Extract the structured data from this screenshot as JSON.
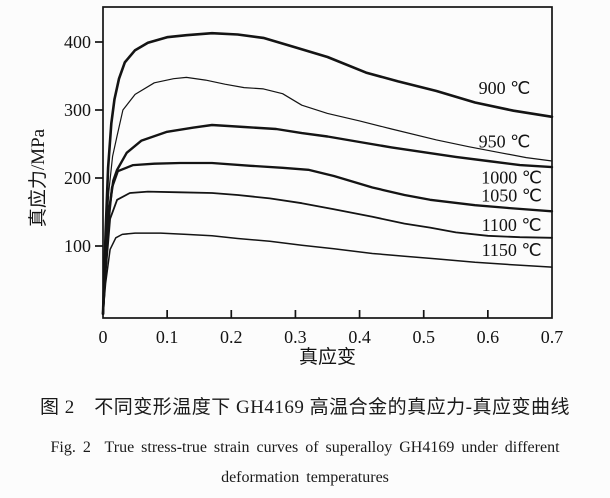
{
  "figure": {
    "caption_zh": "图 2　不同变形温度下 GH4169 高温合金的真应力-真应变曲线",
    "caption_en_line1": "Fig. 2  True stress-true strain curves of superalloy GH4169 under different",
    "caption_en_line2": "deformation temperatures"
  },
  "chart_data": {
    "type": "line",
    "title": "",
    "xlabel": "真应变",
    "ylabel": "真应力/MPa",
    "xlim": [
      0,
      0.7
    ],
    "ylim": [
      0,
      450
    ],
    "grid": false,
    "ink_color": "#141414",
    "legend_position": "inline-right-labels",
    "x_ticks": [
      {
        "value": 0,
        "label": "0"
      },
      {
        "value": 0.1,
        "label": "0.1"
      },
      {
        "value": 0.2,
        "label": "0.2"
      },
      {
        "value": 0.3,
        "label": "0.3"
      },
      {
        "value": 0.4,
        "label": "0.4"
      },
      {
        "value": 0.5,
        "label": "0.5"
      },
      {
        "value": 0.6,
        "label": "0.6"
      },
      {
        "value": 0.7,
        "label": "0.7"
      }
    ],
    "y_ticks": [
      {
        "value": 100,
        "label": "100"
      },
      {
        "value": 200,
        "label": "200"
      },
      {
        "value": 300,
        "label": "300"
      },
      {
        "value": 400,
        "label": "400"
      }
    ],
    "series": [
      {
        "id": "900c",
        "name": "900 ℃",
        "temperature_c": 900,
        "peak_stress_mpa": 413,
        "stroke_width": 2.6,
        "points": [
          [
            0,
            0
          ],
          [
            0.004,
            120
          ],
          [
            0.008,
            215
          ],
          [
            0.013,
            280
          ],
          [
            0.018,
            316
          ],
          [
            0.025,
            346
          ],
          [
            0.034,
            370
          ],
          [
            0.05,
            388
          ],
          [
            0.07,
            399
          ],
          [
            0.1,
            407
          ],
          [
            0.13,
            410
          ],
          [
            0.17,
            413
          ],
          [
            0.21,
            411
          ],
          [
            0.25,
            406
          ],
          [
            0.3,
            392
          ],
          [
            0.35,
            378
          ],
          [
            0.41,
            355
          ],
          [
            0.46,
            342
          ],
          [
            0.52,
            328
          ],
          [
            0.58,
            311
          ],
          [
            0.64,
            299
          ],
          [
            0.7,
            290
          ]
        ]
      },
      {
        "id": "950c",
        "name": "950 ℃",
        "temperature_c": 950,
        "peak_stress_mpa": 348,
        "stroke_width": 1.2,
        "points": [
          [
            0,
            0
          ],
          [
            0.004,
            100
          ],
          [
            0.009,
            180
          ],
          [
            0.015,
            232
          ],
          [
            0.022,
            262
          ],
          [
            0.031,
            300
          ],
          [
            0.05,
            323
          ],
          [
            0.08,
            340
          ],
          [
            0.11,
            346
          ],
          [
            0.13,
            348
          ],
          [
            0.16,
            344
          ],
          [
            0.19,
            338
          ],
          [
            0.22,
            333
          ],
          [
            0.25,
            331
          ],
          [
            0.28,
            324
          ],
          [
            0.31,
            307
          ],
          [
            0.35,
            295
          ],
          [
            0.4,
            284
          ],
          [
            0.45,
            272
          ],
          [
            0.52,
            256
          ],
          [
            0.57,
            246
          ],
          [
            0.62,
            237
          ],
          [
            0.66,
            230
          ],
          [
            0.7,
            225
          ]
        ]
      },
      {
        "id": "1000c",
        "name": "1000 ℃",
        "temperature_c": 1000,
        "peak_stress_mpa": 278,
        "stroke_width": 2.4,
        "points": [
          [
            0,
            0
          ],
          [
            0.004,
            80
          ],
          [
            0.009,
            150
          ],
          [
            0.016,
            196
          ],
          [
            0.022,
            212
          ],
          [
            0.037,
            237
          ],
          [
            0.06,
            255
          ],
          [
            0.1,
            268
          ],
          [
            0.14,
            274
          ],
          [
            0.17,
            278
          ],
          [
            0.22,
            275
          ],
          [
            0.27,
            272
          ],
          [
            0.31,
            266
          ],
          [
            0.35,
            261
          ],
          [
            0.4,
            253
          ],
          [
            0.45,
            245
          ],
          [
            0.5,
            238
          ],
          [
            0.55,
            231
          ],
          [
            0.6,
            225
          ],
          [
            0.65,
            219
          ],
          [
            0.7,
            216
          ]
        ]
      },
      {
        "id": "1050c",
        "name": "1050 ℃",
        "temperature_c": 1050,
        "peak_stress_mpa": 222,
        "stroke_width": 2.3,
        "points": [
          [
            0,
            0
          ],
          [
            0.004,
            70
          ],
          [
            0.009,
            140
          ],
          [
            0.014,
            186
          ],
          [
            0.023,
            210
          ],
          [
            0.047,
            219
          ],
          [
            0.08,
            221
          ],
          [
            0.12,
            222
          ],
          [
            0.17,
            222
          ],
          [
            0.23,
            218
          ],
          [
            0.28,
            215
          ],
          [
            0.32,
            212
          ],
          [
            0.36,
            203
          ],
          [
            0.42,
            186
          ],
          [
            0.47,
            175
          ],
          [
            0.51,
            168
          ],
          [
            0.58,
            160
          ],
          [
            0.63,
            156
          ],
          [
            0.7,
            151
          ]
        ]
      },
      {
        "id": "1100c",
        "name": "1100 ℃",
        "temperature_c": 1100,
        "peak_stress_mpa": 180,
        "stroke_width": 1.8,
        "points": [
          [
            0,
            0
          ],
          [
            0.004,
            60
          ],
          [
            0.011,
            140
          ],
          [
            0.022,
            168
          ],
          [
            0.042,
            178
          ],
          [
            0.07,
            180
          ],
          [
            0.12,
            179
          ],
          [
            0.17,
            178
          ],
          [
            0.21,
            175
          ],
          [
            0.26,
            170
          ],
          [
            0.31,
            163
          ],
          [
            0.36,
            154
          ],
          [
            0.42,
            143
          ],
          [
            0.47,
            133
          ],
          [
            0.51,
            127
          ],
          [
            0.55,
            120
          ],
          [
            0.6,
            115
          ],
          [
            0.65,
            113
          ],
          [
            0.7,
            112
          ]
        ]
      },
      {
        "id": "1150c",
        "name": "1150 ℃",
        "temperature_c": 1150,
        "peak_stress_mpa": 119,
        "stroke_width": 1.5,
        "points": [
          [
            0,
            0
          ],
          [
            0.004,
            45
          ],
          [
            0.011,
            95
          ],
          [
            0.02,
            112
          ],
          [
            0.03,
            117
          ],
          [
            0.05,
            119
          ],
          [
            0.09,
            119
          ],
          [
            0.13,
            117
          ],
          [
            0.17,
            115
          ],
          [
            0.21,
            111
          ],
          [
            0.26,
            107
          ],
          [
            0.31,
            101
          ],
          [
            0.36,
            96
          ],
          [
            0.42,
            89
          ],
          [
            0.47,
            85
          ],
          [
            0.52,
            81
          ],
          [
            0.58,
            76
          ],
          [
            0.63,
            73
          ],
          [
            0.7,
            69
          ]
        ]
      }
    ],
    "annotations": [
      {
        "id": "900c",
        "text": "900 ℃",
        "x": 0.626,
        "y": 332
      },
      {
        "id": "950c",
        "text": "950 ℃",
        "x": 0.626,
        "y": 254
      },
      {
        "id": "1000c",
        "text": "1000 ℃",
        "x": 0.637,
        "y": 201
      },
      {
        "id": "1050c",
        "text": "1050 ℃",
        "x": 0.637,
        "y": 174
      },
      {
        "id": "1100c",
        "text": "1100 ℃",
        "x": 0.637,
        "y": 131
      },
      {
        "id": "1150c",
        "text": "1150 ℃",
        "x": 0.637,
        "y": 94
      }
    ]
  }
}
